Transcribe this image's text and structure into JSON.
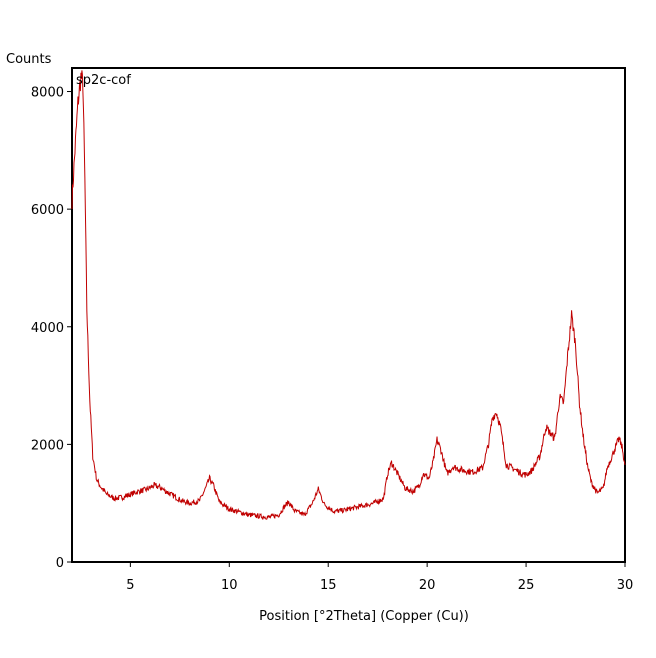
{
  "chart_data": {
    "type": "line",
    "title": "",
    "ylabel": "Counts",
    "xlabel": "Position [°2Theta] (Copper (Cu))",
    "xlim": [
      2.05,
      30.0
    ],
    "ylim": [
      0,
      8400
    ],
    "x_ticks": [
      5,
      10,
      15,
      20,
      25,
      30
    ],
    "y_ticks": [
      0,
      2000,
      4000,
      6000,
      8000
    ],
    "grid": false,
    "legend_position": "top-left inside",
    "line_color": "#c00000",
    "series": [
      {
        "name": "sp2c-cof",
        "x": [
          2.05,
          2.2,
          2.35,
          2.5,
          2.6,
          2.7,
          2.8,
          2.95,
          3.1,
          3.3,
          3.5,
          3.8,
          4.2,
          4.6,
          5.0,
          5.4,
          5.8,
          6.2,
          6.5,
          6.8,
          7.2,
          7.6,
          8.0,
          8.5,
          8.8,
          9.0,
          9.2,
          9.5,
          10.0,
          10.5,
          11.0,
          11.5,
          12.0,
          12.5,
          12.8,
          13.0,
          13.3,
          13.8,
          14.2,
          14.5,
          14.8,
          15.3,
          15.8,
          16.3,
          16.8,
          17.3,
          17.8,
          18.0,
          18.2,
          18.5,
          18.9,
          19.3,
          19.6,
          19.8,
          20.1,
          20.3,
          20.5,
          20.7,
          21.0,
          21.3,
          21.8,
          22.3,
          22.8,
          23.1,
          23.3,
          23.5,
          23.7,
          24.0,
          24.3,
          24.7,
          25.0,
          25.3,
          25.7,
          26.0,
          26.2,
          26.45,
          26.7,
          26.9,
          27.1,
          27.3,
          27.5,
          27.7,
          27.9,
          28.1,
          28.3,
          28.6,
          28.9,
          29.1,
          29.4,
          29.7,
          29.85,
          30.0
        ],
        "y": [
          6150,
          7000,
          7800,
          8250,
          8150,
          6500,
          4300,
          2750,
          1800,
          1400,
          1280,
          1150,
          1080,
          1100,
          1150,
          1200,
          1230,
          1300,
          1270,
          1200,
          1120,
          1040,
          1000,
          1040,
          1250,
          1420,
          1300,
          1020,
          900,
          850,
          800,
          780,
          760,
          800,
          950,
          1020,
          870,
          800,
          1000,
          1240,
          980,
          860,
          880,
          920,
          960,
          1000,
          1080,
          1500,
          1690,
          1500,
          1250,
          1200,
          1300,
          1500,
          1420,
          1700,
          2080,
          1900,
          1500,
          1620,
          1560,
          1530,
          1600,
          2000,
          2450,
          2550,
          2300,
          1650,
          1600,
          1520,
          1480,
          1560,
          1800,
          2300,
          2200,
          2100,
          2800,
          2700,
          3500,
          4200,
          3700,
          2700,
          2100,
          1650,
          1350,
          1170,
          1250,
          1600,
          1850,
          2100,
          1950,
          1650
        ]
      }
    ]
  }
}
